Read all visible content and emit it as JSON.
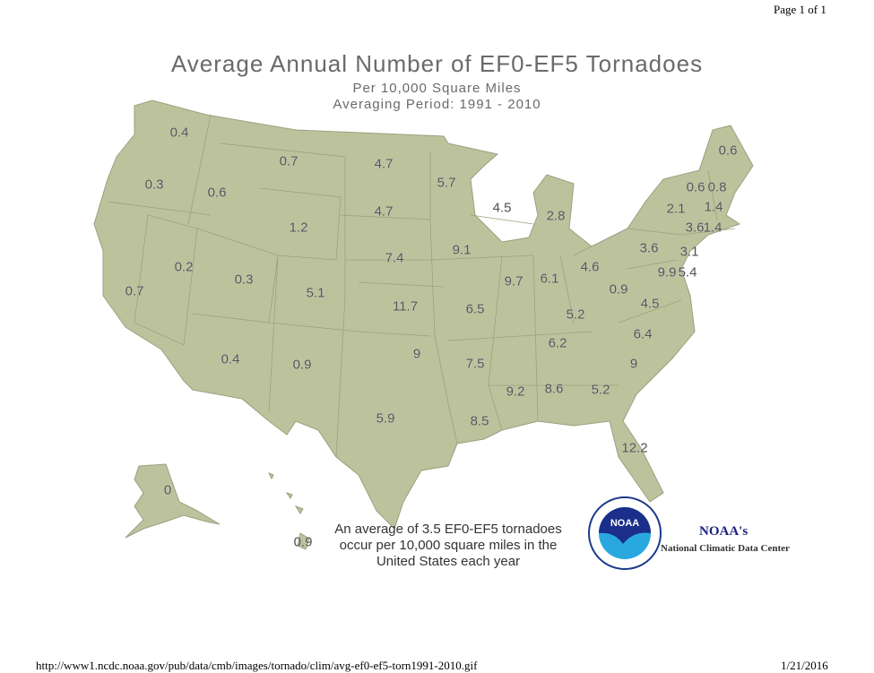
{
  "header": {
    "page": "Page 1 of 1"
  },
  "title": {
    "main": "Average Annual Number of EF0-EF5 Tornadoes",
    "sub1": "Per 10,000 Square Miles",
    "sub2": "Averaging Period:  1991 - 2010"
  },
  "colors": {
    "land": "#bcc39c",
    "border": "#9aa17f",
    "text": "#555555"
  },
  "states": [
    {
      "state": "WA",
      "value": "0.4"
    },
    {
      "state": "OR",
      "value": "0.3"
    },
    {
      "state": "CA",
      "value": "0.7"
    },
    {
      "state": "ID",
      "value": "0.6"
    },
    {
      "state": "NV",
      "value": "0.2"
    },
    {
      "state": "MT",
      "value": "0.7"
    },
    {
      "state": "WY",
      "value": "1.2"
    },
    {
      "state": "UT",
      "value": "0.3"
    },
    {
      "state": "AZ",
      "value": "0.4"
    },
    {
      "state": "CO",
      "value": "5.1"
    },
    {
      "state": "NM",
      "value": "0.9"
    },
    {
      "state": "ND",
      "value": "4.7"
    },
    {
      "state": "SD",
      "value": "4.7"
    },
    {
      "state": "NE",
      "value": "7.4"
    },
    {
      "state": "KS",
      "value": "11.7"
    },
    {
      "state": "OK",
      "value": "9"
    },
    {
      "state": "TX",
      "value": "5.9"
    },
    {
      "state": "MN",
      "value": "5.7"
    },
    {
      "state": "IA",
      "value": "9.1"
    },
    {
      "state": "MO",
      "value": "6.5"
    },
    {
      "state": "AR",
      "value": "7.5"
    },
    {
      "state": "LA",
      "value": "8.5"
    },
    {
      "state": "WI",
      "value": "4.5"
    },
    {
      "state": "IL",
      "value": "9.7"
    },
    {
      "state": "MI",
      "value": "2.8"
    },
    {
      "state": "IN",
      "value": "6.1"
    },
    {
      "state": "OH",
      "value": "4.6"
    },
    {
      "state": "KY",
      "value": "5.2"
    },
    {
      "state": "TN",
      "value": "6.2"
    },
    {
      "state": "MS",
      "value": "9.2"
    },
    {
      "state": "AL",
      "value": "8.6"
    },
    {
      "state": "GA",
      "value": "5.2"
    },
    {
      "state": "FL",
      "value": "12.2"
    },
    {
      "state": "SC",
      "value": "9"
    },
    {
      "state": "NC",
      "value": "6.4"
    },
    {
      "state": "VA",
      "value": "4.5"
    },
    {
      "state": "WV",
      "value": "0.9"
    },
    {
      "state": "PA",
      "value": "3.6"
    },
    {
      "state": "NY",
      "value": "2.1"
    },
    {
      "state": "NJ",
      "value": "3.1"
    },
    {
      "state": "MD",
      "value": "9.9"
    },
    {
      "state": "DE",
      "value": "5.4"
    },
    {
      "state": "CT",
      "value": "3.6"
    },
    {
      "state": "RI",
      "value": "1.4"
    },
    {
      "state": "MA",
      "value": "1.4"
    },
    {
      "state": "VT",
      "value": "0.6"
    },
    {
      "state": "NH",
      "value": "0.8"
    },
    {
      "state": "ME",
      "value": "0.6"
    },
    {
      "state": "AK",
      "value": "0"
    },
    {
      "state": "HI",
      "value": "0.9"
    }
  ],
  "note": "An average of 3.5 EF0-EF5 tornadoes occur per 10,000 square miles in the United States each year",
  "logo": {
    "text": "NOAA",
    "ring": "NATIONAL OCEANIC AND ATMOSPHERIC ADMINISTRATION · U.S. DEPARTMENT OF COMMERCE"
  },
  "credit": {
    "line1": "NOAA's",
    "line2": "National Climatic Data Center"
  },
  "footer": {
    "url": "http://www1.ncdc.noaa.gov/pub/data/cmb/images/tornado/clim/avg-ef0-ef5-torn1991-2010.gif",
    "date": "1/21/2016"
  }
}
